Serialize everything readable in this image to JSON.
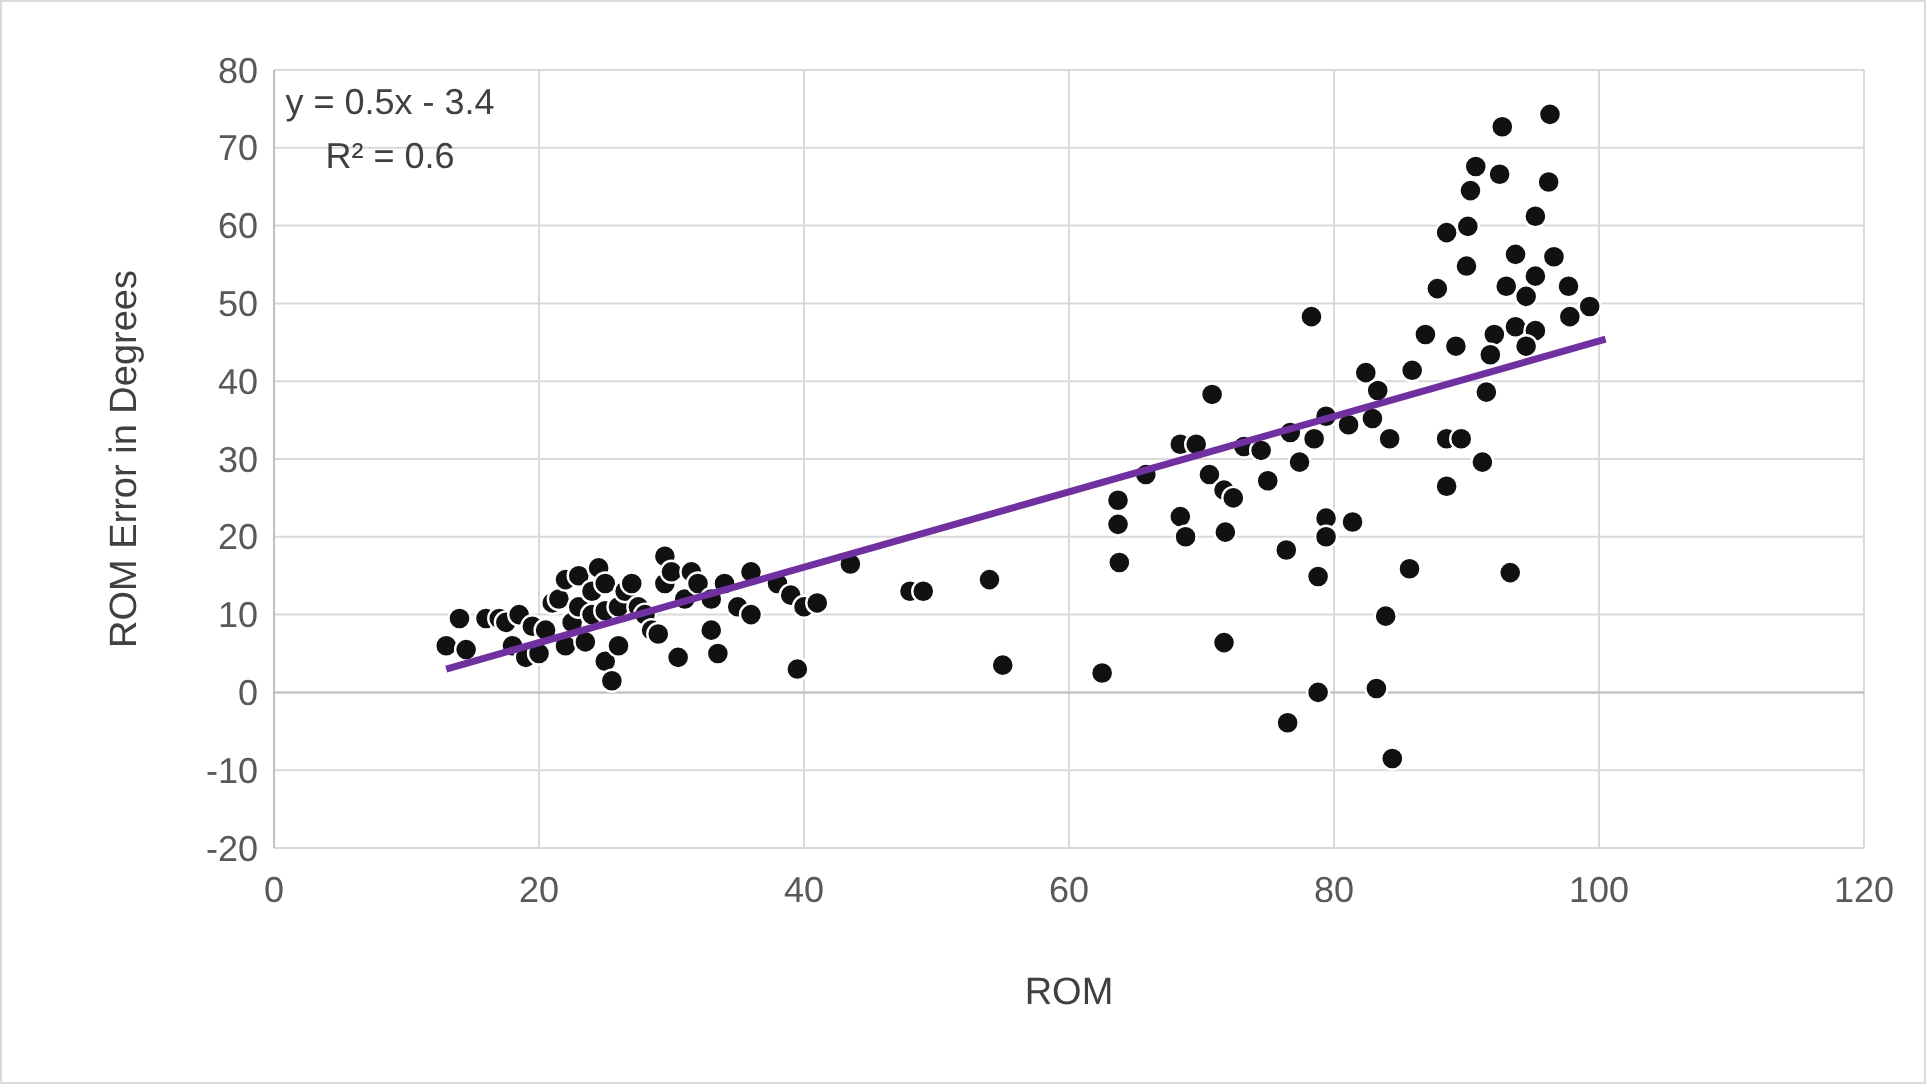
{
  "chart_data": {
    "type": "scatter",
    "xlabel": "ROM",
    "ylabel": "ROM Error in Degrees",
    "xlim": [
      0,
      120
    ],
    "xticks": [
      0,
      20,
      40,
      60,
      80,
      100,
      120
    ],
    "ylim": [
      -20,
      80
    ],
    "yticks": [
      -20,
      -10,
      0,
      10,
      20,
      30,
      40,
      50,
      60,
      70,
      80
    ],
    "grid": true,
    "marker": "circle",
    "annotations": [
      "y = 0.5x - 3.4",
      "R² = 0.6"
    ],
    "series": [
      {
        "color": "#111111",
        "x": [
          13,
          14,
          14.5,
          16,
          17,
          17.5,
          18,
          18.5,
          19,
          19.5,
          20,
          20.5,
          21,
          21.5,
          22,
          22,
          22.5,
          23,
          23,
          23.5,
          24,
          24,
          24.5,
          25,
          25,
          25,
          25.5,
          26,
          26,
          26.5,
          27,
          27.5,
          28,
          28.5,
          29,
          29.5,
          29.5,
          30,
          30.5,
          31,
          31.5,
          32,
          33,
          33,
          33.5,
          34,
          35,
          36,
          36,
          38,
          39,
          39.5,
          40,
          41,
          43.5,
          48,
          49,
          54,
          55,
          62.5,
          70.8,
          68.4,
          69.6,
          65.8,
          63.7,
          63.7,
          63.8,
          68.4,
          68.8,
          70.6,
          71.7,
          72.4,
          71.8,
          71.7,
          73.2,
          74.5,
          75,
          76.7,
          77.4,
          78.5,
          79.4,
          81.1,
          82.9,
          83.3,
          82.4,
          85.9,
          84.2,
          88.5,
          88.5,
          79.4,
          81.4,
          79.4,
          76.4,
          78.8,
          85.7,
          83.9,
          83.2,
          78.8,
          76.5,
          84.4,
          78.3,
          96.3,
          92.7,
          90.7,
          92.5,
          96.2,
          90.3,
          88.5,
          90.1,
          95.2,
          93.7,
          96.6,
          90,
          87.8,
          93,
          95.2,
          94.5,
          97.7,
          99.3,
          97.8,
          86.9,
          89.2,
          92.1,
          93.7,
          95.2,
          91.8,
          94.5,
          91.5,
          89.6,
          91.2,
          93.3
        ],
        "values": [
          6,
          9.5,
          5.5,
          9.5,
          9.5,
          9,
          6,
          10,
          4.5,
          8.5,
          5,
          8,
          11.5,
          12,
          6,
          14.5,
          9,
          11,
          15,
          6.5,
          13,
          10,
          16,
          4,
          10.5,
          14,
          1.5,
          6,
          11,
          13,
          14,
          11,
          10,
          8,
          7.5,
          17.5,
          14,
          15.5,
          4.5,
          12,
          15.5,
          14,
          12,
          8,
          5,
          14,
          11,
          15.5,
          10,
          14,
          12.5,
          3,
          11,
          11.5,
          16.5,
          13,
          13,
          14.5,
          3.5,
          2.5,
          38.3,
          31.9,
          31.9,
          28,
          24.7,
          21.6,
          16.7,
          22.6,
          20,
          28,
          26,
          25,
          20.6,
          6.4,
          31.6,
          31.1,
          27.2,
          33.4,
          29.6,
          32.6,
          35.5,
          34.4,
          35.2,
          38.8,
          41.1,
          41.4,
          32.6,
          32.6,
          26.5,
          22.4,
          21.9,
          20,
          18.3,
          14.9,
          15.9,
          9.8,
          0.5,
          0,
          -3.9,
          -8.5,
          48.3,
          74.3,
          72.7,
          67.6,
          66.6,
          65.6,
          64.5,
          59.1,
          59.9,
          61.2,
          56.3,
          56,
          54.8,
          51.9,
          52.2,
          53.5,
          50.9,
          52.2,
          49.6,
          48.3,
          46,
          44.5,
          46,
          47,
          46.5,
          43.4,
          44.5,
          38.6,
          32.6,
          29.6,
          15.4
        ]
      },
      {
        "type": "line",
        "color": "#7030a0",
        "marker": "none",
        "x": [
          13,
          100.5
        ],
        "values": [
          3,
          45.4
        ]
      }
    ]
  }
}
